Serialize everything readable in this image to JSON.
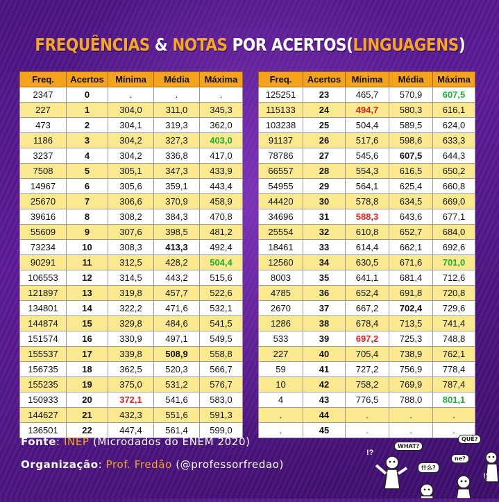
{
  "title": {
    "part1": "FREQUÊNCIAS",
    "part2": "&",
    "part3": "NOTAS",
    "part4": "POR ACERTOS",
    "part5": "(",
    "part6": "LINGUAGENS",
    "part7": ")"
  },
  "colors": {
    "accent_orange": "#f5a623",
    "header_bg": "#f5a21c",
    "row_alt_yellow": "#fbe98f",
    "min_highlight_red": "#e0201c",
    "max_highlight_green": "#1fae35",
    "background_purple": "#5e1c99"
  },
  "chart_data": {
    "type": "table",
    "columns": [
      "Freq.",
      "Acertos",
      "Mínima",
      "Média",
      "Máxima"
    ],
    "rows": [
      [
        "2347",
        "0",
        ".",
        ".",
        "."
      ],
      [
        "227",
        "1",
        "304,0",
        "311,0",
        "345,3"
      ],
      [
        "473",
        "2",
        "304,1",
        "319,3",
        "362,0"
      ],
      [
        "1186",
        "3",
        "304,2",
        "327,3",
        "403,0"
      ],
      [
        "3237",
        "4",
        "304,2",
        "336,8",
        "417,0"
      ],
      [
        "7508",
        "5",
        "305,1",
        "347,3",
        "433,9"
      ],
      [
        "14967",
        "6",
        "305,6",
        "359,1",
        "443,4"
      ],
      [
        "25670",
        "7",
        "306,6",
        "370,9",
        "458,9"
      ],
      [
        "39616",
        "8",
        "308,2",
        "384,3",
        "470,8"
      ],
      [
        "55609",
        "9",
        "307,6",
        "398,5",
        "481,2"
      ],
      [
        "73234",
        "10",
        "308,3",
        "413,3",
        "492,4"
      ],
      [
        "90291",
        "11",
        "312,5",
        "428,2",
        "504,4"
      ],
      [
        "106553",
        "12",
        "314,5",
        "443,2",
        "515,6"
      ],
      [
        "121897",
        "13",
        "319,8",
        "457,7",
        "522,6"
      ],
      [
        "134801",
        "14",
        "322,2",
        "471,6",
        "532,1"
      ],
      [
        "144874",
        "15",
        "329,8",
        "484,6",
        "541,5"
      ],
      [
        "151574",
        "16",
        "330,9",
        "497,1",
        "549,5"
      ],
      [
        "155537",
        "17",
        "339,8",
        "508,9",
        "558,8"
      ],
      [
        "156735",
        "18",
        "362,5",
        "520,3",
        "566,7"
      ],
      [
        "155235",
        "19",
        "375,0",
        "531,2",
        "576,7"
      ],
      [
        "150933",
        "20",
        "372,1",
        "541,6",
        "583,0"
      ],
      [
        "144627",
        "21",
        "432,3",
        "551,6",
        "591,3"
      ],
      [
        "136501",
        "22",
        "447,4",
        "561,4",
        "599,0"
      ],
      [
        "125251",
        "23",
        "465,7",
        "570,9",
        "607,5"
      ],
      [
        "115133",
        "24",
        "494,7",
        "580,3",
        "616,1"
      ],
      [
        "103238",
        "25",
        "504,4",
        "589,5",
        "624,0"
      ],
      [
        "91137",
        "26",
        "517,6",
        "598,6",
        "633,3"
      ],
      [
        "78786",
        "27",
        "545,6",
        "607,5",
        "644,3"
      ],
      [
        "66557",
        "28",
        "554,3",
        "616,5",
        "650,2"
      ],
      [
        "54955",
        "29",
        "564,1",
        "625,4",
        "660,8"
      ],
      [
        "44420",
        "30",
        "578,8",
        "634,5",
        "669,0"
      ],
      [
        "34696",
        "31",
        "588,3",
        "643,6",
        "677,1"
      ],
      [
        "25554",
        "32",
        "610,8",
        "652,7",
        "684,0"
      ],
      [
        "18461",
        "33",
        "614,4",
        "662,1",
        "692,6"
      ],
      [
        "12560",
        "34",
        "630,5",
        "671,6",
        "701,0"
      ],
      [
        "8003",
        "35",
        "641,1",
        "681,4",
        "712,6"
      ],
      [
        "4785",
        "36",
        "652,4",
        "691,8",
        "720,8"
      ],
      [
        "2670",
        "37",
        "667,2",
        "702,4",
        "729,6"
      ],
      [
        "1286",
        "38",
        "678,4",
        "713,5",
        "741,4"
      ],
      [
        "533",
        "39",
        "697,2",
        "725,3",
        "748,8"
      ],
      [
        "227",
        "40",
        "705,4",
        "738,9",
        "762,1"
      ],
      [
        "59",
        "41",
        "727,2",
        "756,9",
        "778,4"
      ],
      [
        "10",
        "42",
        "758,2",
        "769,9",
        "787,4"
      ],
      [
        "4",
        "43",
        "776,5",
        "788,0",
        "801,1"
      ],
      [
        ".",
        "44",
        ".",
        ".",
        "."
      ],
      [
        ".",
        "45",
        ".",
        ".",
        "."
      ]
    ],
    "highlights": {
      "red_min": [
        "20",
        "24",
        "31",
        "39"
      ],
      "green_max": [
        "3",
        "11",
        "23",
        "34",
        "43"
      ],
      "bold_mean": [
        "10",
        "17",
        "27",
        "37"
      ]
    }
  },
  "footer": {
    "source_label": "Fonte",
    "source_value": "INEP",
    "source_detail": "(Microdados do ENEM 2020)",
    "org_label": "Organização",
    "org_value": "Prof. Fredão",
    "org_handle": "(@professorfredao)"
  },
  "cartoon": {
    "bubble1": "WHAT?",
    "bubble2": "QUÊ?",
    "bubble3": "什么?",
    "bubble4": "ne?",
    "marks1": "!?",
    "marks2": "!?"
  }
}
